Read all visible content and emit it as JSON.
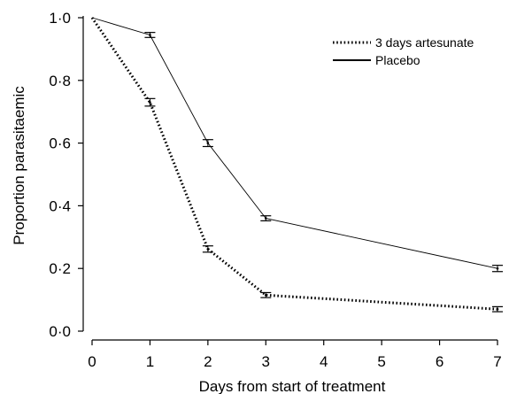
{
  "chart_data": {
    "type": "line",
    "title": "",
    "xlabel": "Days from start of treatment",
    "ylabel": "Proportion parasitaemic",
    "xlim": [
      0,
      7
    ],
    "ylim": [
      0,
      1
    ],
    "x_ticks": [
      0,
      1,
      2,
      3,
      4,
      5,
      6,
      7
    ],
    "x_tick_labels": [
      "0",
      "1",
      "2",
      "3",
      "4",
      "5",
      "6",
      "7"
    ],
    "y_ticks": [
      0,
      0.2,
      0.4,
      0.6,
      0.8,
      1.0
    ],
    "y_tick_labels": [
      "0·0",
      "0·2",
      "0·4",
      "0·6",
      "0·8",
      "1·0"
    ],
    "grid": false,
    "legend_position": "top-right",
    "series": [
      {
        "name": "3 days artesunate",
        "line_style": "dotted",
        "x": [
          0,
          1,
          2,
          3,
          7
        ],
        "y": [
          1.0,
          0.73,
          0.262,
          0.115,
          0.07
        ],
        "error": [
          0.0,
          0.012,
          0.01,
          0.008,
          0.008
        ]
      },
      {
        "name": "Placebo",
        "line_style": "solid",
        "x": [
          0,
          1,
          2,
          3,
          7
        ],
        "y": [
          1.0,
          0.945,
          0.6,
          0.36,
          0.2
        ],
        "error": [
          0.0,
          0.008,
          0.011,
          0.008,
          0.01
        ]
      }
    ]
  }
}
